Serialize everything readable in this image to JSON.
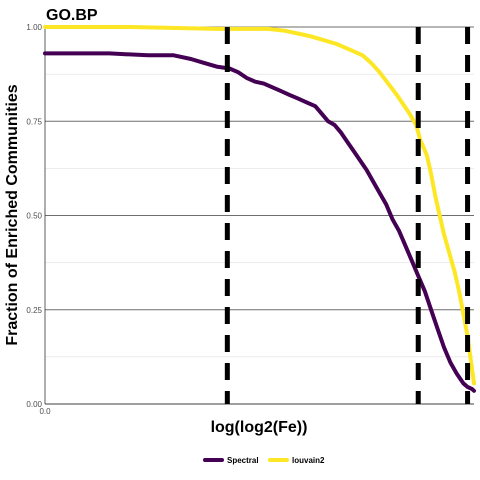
{
  "chart_data": {
    "type": "line",
    "title": "GO.BP",
    "xlabel": "log(log2(Fe))",
    "ylabel": "Fraction of Enriched Communities",
    "x_ticks": [
      "0.0"
    ],
    "xlim": [
      0,
      1
    ],
    "ylim": [
      0,
      1
    ],
    "y_ticks": [
      {
        "value": 0,
        "label": "0.00"
      },
      {
        "value": 0.25,
        "label": "0.25"
      },
      {
        "value": 0.5,
        "label": "0.50"
      },
      {
        "value": 0.75,
        "label": "0.75"
      },
      {
        "value": 1.0,
        "label": "1.00"
      }
    ],
    "y_minor_gridlines": [
      0.125,
      0.375,
      0.625,
      0.875
    ],
    "legend_position": "bottom",
    "vlines": [
      0.425,
      0.87,
      0.985
    ],
    "series": [
      {
        "name": "Spectral",
        "color": "#440154",
        "points": [
          [
            0,
            0.93
          ],
          [
            0.05,
            0.93
          ],
          [
            0.15,
            0.93
          ],
          [
            0.24,
            0.925
          ],
          [
            0.3,
            0.925
          ],
          [
            0.34,
            0.915
          ],
          [
            0.37,
            0.905
          ],
          [
            0.4,
            0.895
          ],
          [
            0.43,
            0.89
          ],
          [
            0.45,
            0.88
          ],
          [
            0.47,
            0.865
          ],
          [
            0.49,
            0.855
          ],
          [
            0.51,
            0.85
          ],
          [
            0.53,
            0.84
          ],
          [
            0.55,
            0.83
          ],
          [
            0.57,
            0.82
          ],
          [
            0.59,
            0.81
          ],
          [
            0.61,
            0.8
          ],
          [
            0.63,
            0.79
          ],
          [
            0.645,
            0.77
          ],
          [
            0.66,
            0.75
          ],
          [
            0.675,
            0.74
          ],
          [
            0.69,
            0.72
          ],
          [
            0.705,
            0.695
          ],
          [
            0.72,
            0.67
          ],
          [
            0.735,
            0.645
          ],
          [
            0.75,
            0.62
          ],
          [
            0.765,
            0.59
          ],
          [
            0.78,
            0.56
          ],
          [
            0.795,
            0.53
          ],
          [
            0.81,
            0.49
          ],
          [
            0.825,
            0.46
          ],
          [
            0.84,
            0.42
          ],
          [
            0.855,
            0.38
          ],
          [
            0.87,
            0.34
          ],
          [
            0.885,
            0.3
          ],
          [
            0.9,
            0.25
          ],
          [
            0.915,
            0.2
          ],
          [
            0.93,
            0.15
          ],
          [
            0.945,
            0.11
          ],
          [
            0.96,
            0.08
          ],
          [
            0.975,
            0.055
          ],
          [
            0.985,
            0.045
          ],
          [
            0.995,
            0.04
          ],
          [
            1.0,
            0.035
          ]
        ]
      },
      {
        "name": "louvain2",
        "color": "#fde725",
        "points": [
          [
            0,
            1.0
          ],
          [
            0.2,
            1.0
          ],
          [
            0.4,
            0.995
          ],
          [
            0.52,
            0.995
          ],
          [
            0.56,
            0.99
          ],
          [
            0.58,
            0.985
          ],
          [
            0.6,
            0.98
          ],
          [
            0.62,
            0.975
          ],
          [
            0.65,
            0.965
          ],
          [
            0.68,
            0.955
          ],
          [
            0.71,
            0.94
          ],
          [
            0.74,
            0.925
          ],
          [
            0.76,
            0.905
          ],
          [
            0.78,
            0.88
          ],
          [
            0.8,
            0.85
          ],
          [
            0.82,
            0.82
          ],
          [
            0.835,
            0.795
          ],
          [
            0.85,
            0.77
          ],
          [
            0.865,
            0.74
          ],
          [
            0.875,
            0.7
          ],
          [
            0.89,
            0.66
          ],
          [
            0.9,
            0.61
          ],
          [
            0.91,
            0.55
          ],
          [
            0.92,
            0.5
          ],
          [
            0.93,
            0.45
          ],
          [
            0.94,
            0.41
          ],
          [
            0.955,
            0.35
          ],
          [
            0.965,
            0.3
          ],
          [
            0.975,
            0.24
          ],
          [
            0.985,
            0.18
          ],
          [
            0.992,
            0.12
          ],
          [
            0.997,
            0.08
          ],
          [
            1.0,
            0.055
          ]
        ]
      }
    ]
  }
}
